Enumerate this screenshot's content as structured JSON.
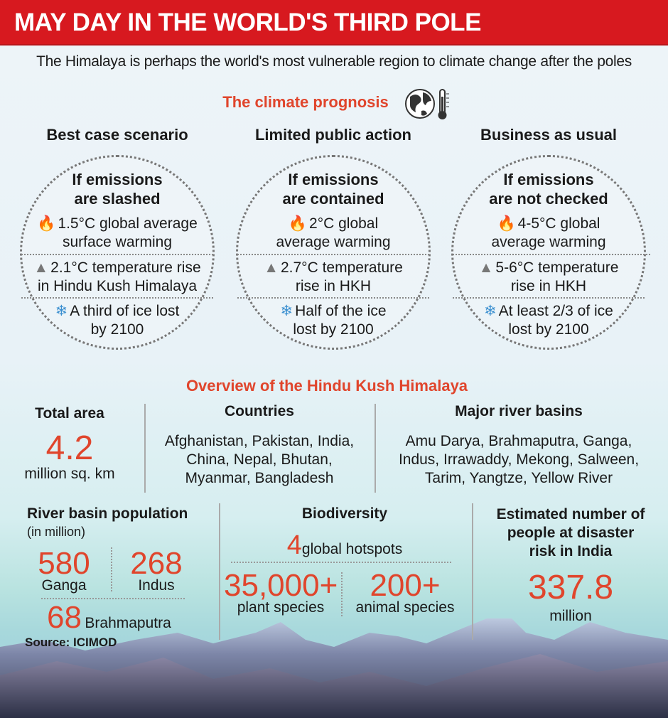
{
  "header": {
    "title": "MAY DAY IN THE WORLD'S THIRD POLE",
    "subtitle": "The Himalaya is perhaps the world's most vulnerable region to climate change after the poles"
  },
  "prognosis": {
    "title": "The climate prognosis",
    "icon": "globe-thermometer-icon",
    "scenarios": [
      {
        "heading": "Best case scenario",
        "condition": [
          "If emissions",
          "are slashed"
        ],
        "warming": [
          "1.5°C global average",
          "surface warming"
        ],
        "hkh": [
          "2.1°C temperature rise",
          "in Hindu Kush Himalaya"
        ],
        "ice": [
          "A third of ice lost",
          "by 2100"
        ]
      },
      {
        "heading": "Limited public action",
        "condition": [
          "If emissions",
          "are contained"
        ],
        "warming": [
          "2°C global",
          "average warming"
        ],
        "hkh": [
          "2.7°C temperature",
          "rise in HKH"
        ],
        "ice": [
          "Half of the ice",
          "lost by 2100"
        ]
      },
      {
        "heading": "Business as usual",
        "condition": [
          "If emissions",
          "are not checked"
        ],
        "warming": [
          "4-5°C global",
          "average warming"
        ],
        "hkh": [
          "5-6°C temperature",
          "rise in HKH"
        ],
        "ice": [
          "At least 2/3 of ice",
          "lost by 2100"
        ]
      }
    ]
  },
  "overview": {
    "title": "Overview of the Hindu Kush Himalaya",
    "area": {
      "heading": "Total area",
      "value": "4.2",
      "unit": "million sq. km"
    },
    "countries": {
      "heading": "Countries",
      "lines": [
        "Afghanistan, Pakistan, India,",
        "China, Nepal, Bhutan,",
        "Myanmar, Bangladesh"
      ]
    },
    "basins": {
      "heading": "Major river basins",
      "lines": [
        "Amu Darya, Brahmaputra, Ganga,",
        "Indus, Irrawaddy, Mekong, Salween,",
        "Tarim, Yangtze, Yellow River"
      ]
    },
    "population": {
      "heading": "River basin population",
      "sub": "(in million)",
      "ganga": {
        "value": "580",
        "label": "Ganga"
      },
      "indus": {
        "value": "268",
        "label": "Indus"
      },
      "brahmaputra": {
        "value": "68",
        "label": "Brahmaputra"
      }
    },
    "biodiversity": {
      "heading": "Biodiversity",
      "hotspots": {
        "value": "4",
        "label": "global hotspots"
      },
      "plants": {
        "value": "35,000+",
        "label": "plant species"
      },
      "animals": {
        "value": "200+",
        "label": "animal species"
      }
    },
    "risk": {
      "heading": [
        "Estimated number of",
        "people at disaster",
        "risk in India"
      ],
      "value": "337.8",
      "unit": "million"
    }
  },
  "source": "Source: ICIMOD",
  "colors": {
    "header": "#d7191f",
    "accent": "#e0452c"
  }
}
